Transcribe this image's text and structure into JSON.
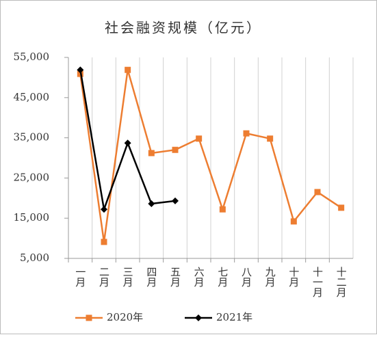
{
  "chart_data": {
    "type": "line",
    "title": "社会融资规模（亿元）",
    "categories": [
      "一月",
      "二月",
      "三月",
      "四月",
      "五月",
      "六月",
      "七月",
      "八月",
      "九月",
      "十月",
      "十一月",
      "十二月"
    ],
    "series": [
      {
        "name": "2020年",
        "color": "#ed7d31",
        "marker": "square",
        "values": [
          50900,
          9100,
          51900,
          31200,
          32000,
          34800,
          17200,
          36100,
          34800,
          14200,
          21500,
          17600
        ]
      },
      {
        "name": "2021年",
        "color": "#000000",
        "marker": "diamond",
        "values": [
          51900,
          17200,
          33700,
          18600,
          19300,
          null,
          null,
          null,
          null,
          null,
          null,
          null
        ]
      }
    ],
    "ylim": [
      5000,
      55000
    ],
    "yticks": [
      {
        "value": 5000,
        "label": "5,000"
      },
      {
        "value": 15000,
        "label": "15,000"
      },
      {
        "value": 25000,
        "label": "25,000"
      },
      {
        "value": 35000,
        "label": "35,000"
      },
      {
        "value": 45000,
        "label": "45,000"
      },
      {
        "value": 55000,
        "label": "55,000"
      }
    ],
    "grid": true,
    "legend": "bottom"
  }
}
